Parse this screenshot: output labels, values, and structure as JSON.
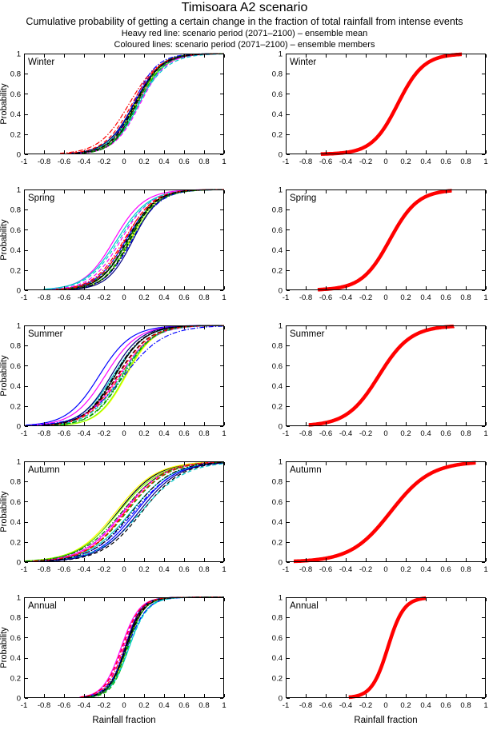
{
  "header": {
    "title": "Timisoara A2 scenario",
    "subtitle": "Cumulative probability of getting a certain change in the fraction of total rainfall from intense events",
    "legend_mean": "Heavy red line: scenario period (2071–2100) – ensemble mean",
    "legend_members": "Coloured lines: scenario period (2071–2100) – ensemble members"
  },
  "chart_data": {
    "type": "line",
    "title": "Timisoara A2 scenario",
    "subtitle": "Cumulative probability of getting a certain change in the fraction of total rainfall from intense events",
    "xlabel": "Rainfall fraction",
    "ylabel": "Probability",
    "xlim": [
      -1,
      1
    ],
    "ylim": [
      0,
      1
    ],
    "xticks": [
      -1,
      -0.8,
      -0.6,
      -0.4,
      -0.2,
      0,
      0.2,
      0.4,
      0.6,
      0.8,
      1
    ],
    "xtick_labels": [
      "-1",
      "-0.8",
      "-0.6",
      "-0.4",
      "-0.2",
      "0",
      "0.2",
      "0.4",
      "0.6",
      "0.8",
      "1"
    ],
    "yticks": [
      0,
      0.2,
      0.4,
      0.6,
      0.8,
      1
    ],
    "ytick_labels": [
      "0",
      "0.2",
      "0.4",
      "0.6",
      "0.8",
      "1"
    ],
    "grid": false,
    "legend_position": "none",
    "columns": [
      "ensemble members (coloured lines)",
      "ensemble mean (heavy red line)"
    ],
    "mean_color": "#ff0000",
    "mean_line_width": 4.5,
    "member_line_width": 1.2,
    "curve_model": "logistic CDF: y = 1/(1+exp(-(x-mu)/s))",
    "member_styles": [
      {
        "color": "#0000ff",
        "dash": "solid"
      },
      {
        "color": "#ff00ff",
        "dash": "solid"
      },
      {
        "color": "#00cccc",
        "dash": "solid"
      },
      {
        "color": "#000000",
        "dash": "solid"
      },
      {
        "color": "#ffff00",
        "dash": "solid"
      },
      {
        "color": "#7fff00",
        "dash": "solid"
      },
      {
        "color": "#00bb00",
        "dash": "dashed"
      },
      {
        "color": "#ff0000",
        "dash": "dashdot"
      },
      {
        "color": "#0000ff",
        "dash": "dashdot"
      },
      {
        "color": "#000000",
        "dash": "dashed"
      },
      {
        "color": "#ff00ff",
        "dash": "dashed"
      },
      {
        "color": "#00cccc",
        "dash": "dashed"
      },
      {
        "color": "#000080",
        "dash": "solid"
      },
      {
        "color": "#008800",
        "dash": "dashdot"
      },
      {
        "color": "#ff0000",
        "dash": "dashed"
      },
      {
        "color": "#000000",
        "dash": "dashdot"
      }
    ],
    "seasons": [
      {
        "name": "Winter",
        "mean": {
          "mu": 0.12,
          "s": 0.13,
          "xrange": [
            -0.65,
            0.76
          ],
          "points": [
            [
              -0.65,
              0
            ],
            [
              -0.4,
              0.02
            ],
            [
              -0.2,
              0.08
            ],
            [
              0,
              0.29
            ],
            [
              0.12,
              0.5
            ],
            [
              0.2,
              0.65
            ],
            [
              0.4,
              0.9
            ],
            [
              0.6,
              0.98
            ],
            [
              0.76,
              1
            ]
          ]
        },
        "member_params": [
          [
            0.1,
            0.13
          ],
          [
            0.13,
            0.14
          ],
          [
            0.15,
            0.13
          ],
          [
            0.12,
            0.12
          ],
          [
            0.11,
            0.13
          ],
          [
            0.12,
            0.14
          ],
          [
            0.14,
            0.13
          ],
          [
            0.05,
            0.15
          ],
          [
            0.09,
            0.12
          ],
          [
            0.12,
            0.13
          ],
          [
            0.16,
            0.13
          ],
          [
            0.14,
            0.15
          ],
          [
            0.1,
            0.14
          ],
          [
            0.13,
            0.12
          ],
          [
            0.08,
            0.14
          ],
          [
            0.11,
            0.13
          ]
        ]
      },
      {
        "name": "Spring",
        "mean": {
          "mu": 0.04,
          "s": 0.14,
          "xrange": [
            -0.68,
            0.66
          ],
          "points": [
            [
              -0.68,
              0
            ],
            [
              -0.4,
              0.04
            ],
            [
              -0.2,
              0.15
            ],
            [
              0,
              0.43
            ],
            [
              0.04,
              0.5
            ],
            [
              0.2,
              0.76
            ],
            [
              0.4,
              0.93
            ],
            [
              0.66,
              1
            ]
          ]
        },
        "member_params": [
          [
            0.02,
            0.15
          ],
          [
            -0.1,
            0.15
          ],
          [
            -0.07,
            0.16
          ],
          [
            0.04,
            0.14
          ],
          [
            0.06,
            0.13
          ],
          [
            0.07,
            0.14
          ],
          [
            0.05,
            0.13
          ],
          [
            0.0,
            0.15
          ],
          [
            0.08,
            0.14
          ],
          [
            0.03,
            0.14
          ],
          [
            -0.03,
            0.15
          ],
          [
            -0.05,
            0.16
          ],
          [
            0.09,
            0.13
          ],
          [
            0.04,
            0.15
          ],
          [
            0.01,
            0.14
          ],
          [
            0.06,
            0.13
          ]
        ]
      },
      {
        "name": "Summer",
        "mean": {
          "mu": -0.07,
          "s": 0.16,
          "xrange": [
            -0.77,
            0.68
          ],
          "points": [
            [
              -0.77,
              0
            ],
            [
              -0.6,
              0.03
            ],
            [
              -0.4,
              0.11
            ],
            [
              -0.2,
              0.31
            ],
            [
              -0.07,
              0.5
            ],
            [
              0,
              0.61
            ],
            [
              0.2,
              0.84
            ],
            [
              0.4,
              0.95
            ],
            [
              0.68,
              1
            ]
          ]
        },
        "member_params": [
          [
            -0.25,
            0.16
          ],
          [
            -0.19,
            0.16
          ],
          [
            -0.11,
            0.16
          ],
          [
            -0.09,
            0.15
          ],
          [
            0.02,
            0.14
          ],
          [
            0.01,
            0.14
          ],
          [
            -0.02,
            0.15
          ],
          [
            -0.04,
            0.16
          ],
          [
            0.0,
            0.2
          ],
          [
            -0.07,
            0.16
          ],
          [
            -0.05,
            0.17
          ],
          [
            -0.03,
            0.16
          ],
          [
            -0.13,
            0.15
          ],
          [
            -0.01,
            0.15
          ],
          [
            -0.06,
            0.16
          ],
          [
            -0.1,
            0.15
          ]
        ]
      },
      {
        "name": "Autumn",
        "mean": {
          "mu": 0.05,
          "s": 0.2,
          "xrange": [
            -0.92,
            0.9
          ],
          "points": [
            [
              -0.92,
              0
            ],
            [
              -0.8,
              0.01
            ],
            [
              -0.6,
              0.04
            ],
            [
              -0.4,
              0.1
            ],
            [
              -0.2,
              0.22
            ],
            [
              0,
              0.44
            ],
            [
              0.05,
              0.5
            ],
            [
              0.2,
              0.68
            ],
            [
              0.4,
              0.85
            ],
            [
              0.6,
              0.94
            ],
            [
              0.8,
              0.98
            ],
            [
              0.9,
              1
            ]
          ]
        },
        "member_params": [
          [
            0.12,
            0.2
          ],
          [
            -0.01,
            0.2
          ],
          [
            0.07,
            0.21
          ],
          [
            -0.06,
            0.2
          ],
          [
            -0.08,
            0.2
          ],
          [
            -0.05,
            0.21
          ],
          [
            0.03,
            0.2
          ],
          [
            0.01,
            0.19
          ],
          [
            0.1,
            0.21
          ],
          [
            0.18,
            0.2
          ],
          [
            0.0,
            0.2
          ],
          [
            0.17,
            0.22
          ],
          [
            0.15,
            0.2
          ],
          [
            -0.02,
            0.21
          ],
          [
            0.02,
            0.2
          ],
          [
            0.08,
            0.2
          ]
        ]
      },
      {
        "name": "Annual",
        "mean": {
          "mu": 0.02,
          "s": 0.08,
          "xrange": [
            -0.37,
            0.4
          ],
          "points": [
            [
              -0.37,
              0
            ],
            [
              -0.3,
              0.02
            ],
            [
              -0.2,
              0.06
            ],
            [
              -0.1,
              0.18
            ],
            [
              0,
              0.44
            ],
            [
              0.02,
              0.5
            ],
            [
              0.1,
              0.73
            ],
            [
              0.2,
              0.9
            ],
            [
              0.3,
              0.97
            ],
            [
              0.4,
              1
            ]
          ]
        },
        "member_params": [
          [
            0.01,
            0.085
          ],
          [
            -0.03,
            0.09
          ],
          [
            0.05,
            0.09
          ],
          [
            0.02,
            0.08
          ],
          [
            0.03,
            0.085
          ],
          [
            0.02,
            0.09
          ],
          [
            0.04,
            0.08
          ],
          [
            0.0,
            0.09
          ],
          [
            0.03,
            0.1
          ],
          [
            0.02,
            0.085
          ],
          [
            -0.01,
            0.09
          ],
          [
            0.05,
            0.095
          ],
          [
            0.01,
            0.08
          ],
          [
            0.03,
            0.085
          ],
          [
            -0.02,
            0.09
          ],
          [
            0.02,
            0.09
          ]
        ]
      }
    ]
  }
}
